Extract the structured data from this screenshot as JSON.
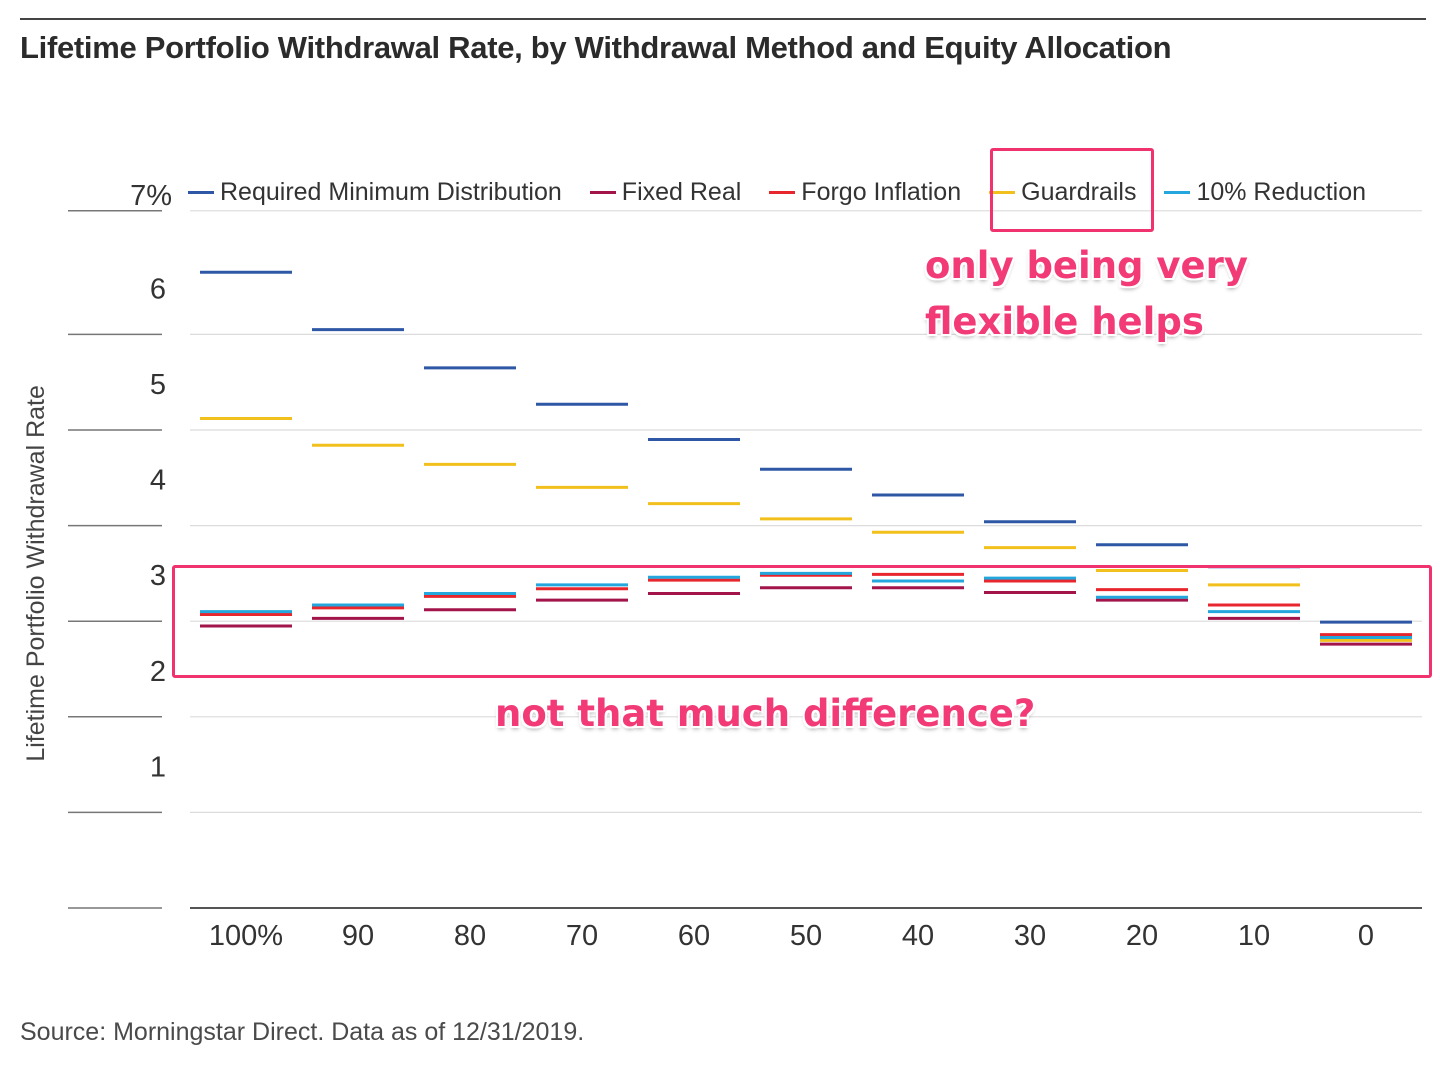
{
  "title": "Lifetime Portfolio Withdrawal Rate, by Withdrawal Method and Equity Allocation",
  "source": "Source: Morningstar Direct. Data as of 12/31/2019.",
  "annotations": {
    "flexible_note_line1": "only being very",
    "flexible_note_line2": "flexible helps",
    "difference_note": "not that much difference?",
    "accent_color": "#f0326e"
  },
  "chart_data": {
    "type": "scatter",
    "title": "Lifetime Portfolio Withdrawal Rate, by Withdrawal Method and Equity Allocation",
    "xlabel": "",
    "ylabel": "Lifetime Portfolio Withdrawal Rate",
    "categories": [
      "100%",
      "90",
      "80",
      "70",
      "60",
      "50",
      "40",
      "30",
      "20",
      "10",
      "0"
    ],
    "yticks": [
      {
        "value": 1,
        "label": "1"
      },
      {
        "value": 2,
        "label": "2"
      },
      {
        "value": 3,
        "label": "3"
      },
      {
        "value": 4,
        "label": "4"
      },
      {
        "value": 5,
        "label": "5"
      },
      {
        "value": 6,
        "label": "6"
      },
      {
        "value": 7,
        "label": "7%"
      }
    ],
    "ylim": [
      0,
      7.0
    ],
    "grid": true,
    "legend_position": "top",
    "series": [
      {
        "name": "Required Minimum Distribution",
        "color": "#2e58a6",
        "values": [
          6.65,
          6.05,
          5.65,
          5.27,
          4.9,
          4.59,
          4.32,
          4.04,
          3.8,
          3.57,
          2.99
        ]
      },
      {
        "name": "Fixed Real",
        "color": "#a3154a",
        "values": [
          2.95,
          3.03,
          3.12,
          3.22,
          3.29,
          3.35,
          3.35,
          3.3,
          3.22,
          3.03,
          2.76
        ]
      },
      {
        "name": "Forgo Inflation",
        "color": "#e8262e",
        "values": [
          3.07,
          3.14,
          3.26,
          3.34,
          3.43,
          3.48,
          3.49,
          3.42,
          3.33,
          3.17,
          2.86
        ]
      },
      {
        "name": "Guardrails",
        "color": "#f2c01c",
        "values": [
          5.12,
          4.84,
          4.64,
          4.4,
          4.23,
          4.07,
          3.93,
          3.77,
          3.53,
          3.38,
          2.8
        ]
      },
      {
        "name": "10% Reduction",
        "color": "#24a7dd",
        "values": [
          3.1,
          3.17,
          3.29,
          3.38,
          3.46,
          3.5,
          3.42,
          3.45,
          3.25,
          3.1,
          2.83
        ]
      }
    ]
  }
}
